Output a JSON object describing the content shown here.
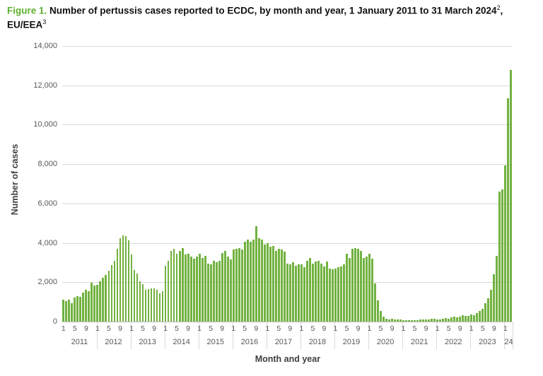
{
  "figure": {
    "label": "Figure 1.",
    "title_main": " Number of pertussis cases reported to ECDC, by month and year, 1 January 2011 to 31 March 2024",
    "title_sup_a": "2",
    "title_mid": ", EU/EEA",
    "title_sup_b": "3"
  },
  "chart_data": {
    "type": "bar",
    "title": "Number of pertussis cases reported to ECDC, by month and year, 1 January 2011 to 31 March 2024, EU/EEA",
    "xlabel": "Month and year",
    "ylabel": "Number of cases",
    "ylim": [
      0,
      14000
    ],
    "grid": "horizontal",
    "bar_color": "#72b240",
    "ytick_values": [
      0,
      2000,
      4000,
      6000,
      8000,
      10000,
      12000,
      14000
    ],
    "ytick_labels": [
      "0",
      "2,000",
      "4,000",
      "6,000",
      "8,000",
      "10,000",
      "12,000",
      "14,000"
    ],
    "month_tick_labels": [
      "1",
      "5",
      "9"
    ],
    "years": [
      {
        "label": "2011",
        "values": [
          1100,
          1050,
          1100,
          930,
          1230,
          1290,
          1260,
          1470,
          1620,
          1560,
          1980,
          1820
        ]
      },
      {
        "label": "2012",
        "values": [
          1880,
          2040,
          2210,
          2360,
          2570,
          2870,
          3080,
          3710,
          4250,
          4390,
          4340,
          4130
        ]
      },
      {
        "label": "2013",
        "values": [
          3400,
          2630,
          2450,
          2050,
          1900,
          1600,
          1650,
          1700,
          1700,
          1600,
          1450,
          1550
        ]
      },
      {
        "label": "2014",
        "values": [
          2850,
          3100,
          3600,
          3700,
          3450,
          3600,
          3750,
          3400,
          3450,
          3300,
          3200,
          3300
        ]
      },
      {
        "label": "2015",
        "values": [
          3450,
          3250,
          3350,
          2950,
          2900,
          3100,
          3000,
          3100,
          3500,
          3600,
          3300,
          3150
        ]
      },
      {
        "label": "2016",
        "values": [
          3650,
          3700,
          3750,
          3650,
          4050,
          4150,
          4050,
          4150,
          4850,
          4250,
          4150,
          3900
        ]
      },
      {
        "label": "2017",
        "values": [
          4000,
          3800,
          3850,
          3600,
          3700,
          3650,
          3550,
          2950,
          2900,
          3000,
          2850,
          2900
        ]
      },
      {
        "label": "2018",
        "values": [
          2900,
          2750,
          3100,
          3250,
          2950,
          3050,
          3100,
          2950,
          2800,
          3050,
          2700,
          2650
        ]
      },
      {
        "label": "2019",
        "values": [
          2700,
          2750,
          2800,
          2900,
          3450,
          3250,
          3700,
          3750,
          3700,
          3600,
          3250,
          3300
        ]
      },
      {
        "label": "2020",
        "values": [
          3450,
          3200,
          1930,
          1080,
          540,
          250,
          130,
          120,
          145,
          95,
          120,
          110
        ]
      },
      {
        "label": "2021",
        "values": [
          90,
          70,
          60,
          75,
          80,
          85,
          95,
          110,
          100,
          120,
          150,
          160
        ]
      },
      {
        "label": "2022",
        "values": [
          120,
          100,
          145,
          180,
          160,
          210,
          240,
          210,
          270,
          330,
          300,
          280
        ]
      },
      {
        "label": "2023",
        "values": [
          360,
          340,
          450,
          540,
          650,
          950,
          1200,
          1600,
          2400,
          3350,
          6600,
          6700
        ]
      },
      {
        "label": "24",
        "values": [
          7950,
          11330,
          12770
        ]
      }
    ]
  }
}
